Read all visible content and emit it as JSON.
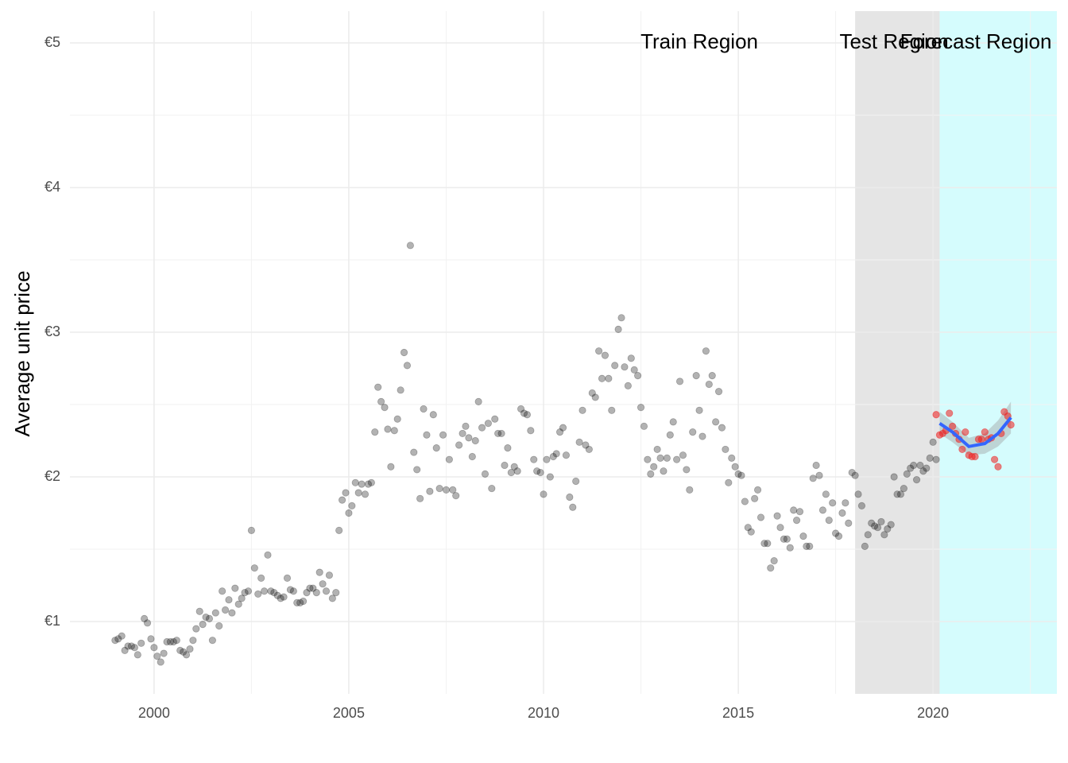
{
  "chart_data": {
    "type": "scatter",
    "y_label": "Average unit price",
    "xlim": [
      1997.84,
      2023.18
    ],
    "ylim": [
      0.5,
      5.22
    ],
    "xticks": [
      2000,
      2005,
      2010,
      2015,
      2020
    ],
    "x_minor_grid": [
      2002.5,
      2007.5,
      2012.5,
      2017.5,
      2022.5
    ],
    "yticks": [
      {
        "value": 1,
        "label": "€1"
      },
      {
        "value": 2,
        "label": "€2"
      },
      {
        "value": 3,
        "label": "€3"
      },
      {
        "value": 4,
        "label": "€4"
      },
      {
        "value": 5,
        "label": "€5"
      }
    ],
    "y_minor_grid": [
      1.5,
      2.5,
      3.5,
      4.5
    ],
    "grid": true,
    "regions": [
      {
        "start": 2018,
        "end": 2020.17,
        "color": "#e5e5e5"
      },
      {
        "start": 2020.17,
        "end": 2023.18,
        "color": "#d5fcfd"
      }
    ],
    "annotations": [
      {
        "text": "Train Region",
        "x": 2014,
        "y": 5
      },
      {
        "text": "Test Region",
        "x": 2019,
        "y": 5
      },
      {
        "text": "Forecast Region",
        "x": 2021.1,
        "y": 5
      }
    ],
    "series": [
      {
        "color": "#000000",
        "opacity": 0.3,
        "x": [
          1999,
          1999.08,
          1999.17,
          1999.25,
          1999.33,
          1999.42,
          1999.5,
          1999.58,
          1999.67,
          1999.75,
          1999.83,
          1999.92,
          2000,
          2000.08,
          2000.17,
          2000.25,
          2000.33,
          2000.42,
          2000.5,
          2000.58,
          2000.67,
          2000.75,
          2000.83,
          2000.92,
          2001,
          2001.08,
          2001.17,
          2001.25,
          2001.33,
          2001.42,
          2001.5,
          2001.58,
          2001.67,
          2001.75,
          2001.83,
          2001.92,
          2002,
          2002.08,
          2002.17,
          2002.25,
          2002.33,
          2002.42,
          2002.5,
          2002.58,
          2002.67,
          2002.75,
          2002.83,
          2002.92,
          2003,
          2003.08,
          2003.17,
          2003.25,
          2003.33,
          2003.42,
          2003.5,
          2003.58,
          2003.67,
          2003.75,
          2003.83,
          2003.92,
          2004,
          2004.08,
          2004.17,
          2004.25,
          2004.33,
          2004.42,
          2004.5,
          2004.58,
          2004.67,
          2004.75,
          2004.83,
          2004.92,
          2005,
          2005.08,
          2005.17,
          2005.25,
          2005.33,
          2005.42,
          2005.5,
          2005.58,
          2005.67,
          2005.75,
          2005.83,
          2005.92,
          2006,
          2006.08,
          2006.17,
          2006.25,
          2006.33,
          2006.42,
          2006.5,
          2006.58,
          2006.67,
          2006.75,
          2006.83,
          2006.92,
          2007,
          2007.08,
          2007.17,
          2007.25,
          2007.33,
          2007.42,
          2007.5,
          2007.58,
          2007.67,
          2007.75,
          2007.83,
          2007.92,
          2008,
          2008.08,
          2008.17,
          2008.25,
          2008.33,
          2008.42,
          2008.5,
          2008.58,
          2008.67,
          2008.75,
          2008.83,
          2008.92,
          2009,
          2009.08,
          2009.17,
          2009.25,
          2009.33,
          2009.42,
          2009.5,
          2009.58,
          2009.67,
          2009.75,
          2009.83,
          2009.92,
          2010,
          2010.08,
          2010.17,
          2010.25,
          2010.33,
          2010.42,
          2010.5,
          2010.58,
          2010.67,
          2010.75,
          2010.83,
          2010.92,
          2011,
          2011.08,
          2011.17,
          2011.25,
          2011.33,
          2011.42,
          2011.5,
          2011.58,
          2011.67,
          2011.75,
          2011.83,
          2011.92,
          2012,
          2012.08,
          2012.17,
          2012.25,
          2012.33,
          2012.42,
          2012.5,
          2012.58,
          2012.67,
          2012.75,
          2012.83,
          2012.92,
          2013,
          2013.08,
          2013.17,
          2013.25,
          2013.33,
          2013.42,
          2013.5,
          2013.58,
          2013.67,
          2013.75,
          2013.83,
          2013.92,
          2014,
          2014.08,
          2014.17,
          2014.25,
          2014.33,
          2014.42,
          2014.5,
          2014.58,
          2014.67,
          2014.75,
          2014.83,
          2014.92,
          2015,
          2015.08,
          2015.17,
          2015.25,
          2015.33,
          2015.42,
          2015.5,
          2015.58,
          2015.67,
          2015.75,
          2015.83,
          2015.92,
          2016,
          2016.08,
          2016.17,
          2016.25,
          2016.33,
          2016.42,
          2016.5,
          2016.58,
          2016.67,
          2016.75,
          2016.83,
          2016.92,
          2017,
          2017.08,
          2017.17,
          2017.25,
          2017.33,
          2017.42,
          2017.5,
          2017.58,
          2017.67,
          2017.75,
          2017.83,
          2017.92,
          2018,
          2018.08,
          2018.17,
          2018.25,
          2018.33,
          2018.42,
          2018.5,
          2018.58,
          2018.67,
          2018.75,
          2018.83,
          2018.92,
          2019,
          2019.08,
          2019.17,
          2019.25,
          2019.33,
          2019.42,
          2019.5,
          2019.58,
          2019.67,
          2019.75,
          2019.83,
          2019.92,
          2020,
          2020.08
        ],
        "values": [
          0.87,
          0.88,
          0.9,
          0.8,
          0.83,
          0.83,
          0.82,
          0.77,
          0.85,
          1.02,
          0.99,
          0.88,
          0.82,
          0.76,
          0.72,
          0.78,
          0.86,
          0.86,
          0.86,
          0.87,
          0.8,
          0.79,
          0.77,
          0.81,
          0.87,
          0.95,
          1.07,
          0.98,
          1.03,
          1.02,
          0.87,
          1.06,
          0.97,
          1.21,
          1.08,
          1.15,
          1.06,
          1.23,
          1.12,
          1.16,
          1.2,
          1.21,
          1.63,
          1.37,
          1.19,
          1.3,
          1.21,
          1.46,
          1.21,
          1.2,
          1.18,
          1.16,
          1.17,
          1.3,
          1.22,
          1.21,
          1.13,
          1.13,
          1.14,
          1.2,
          1.23,
          1.23,
          1.2,
          1.34,
          1.26,
          1.21,
          1.32,
          1.16,
          1.2,
          1.63,
          1.84,
          1.89,
          1.75,
          1.8,
          1.96,
          1.89,
          1.95,
          1.88,
          1.95,
          1.96,
          2.31,
          2.62,
          2.52,
          2.48,
          2.33,
          2.07,
          2.32,
          2.4,
          2.6,
          2.86,
          2.77,
          3.6,
          2.17,
          2.05,
          1.85,
          2.47,
          2.29,
          1.9,
          2.43,
          2.2,
          1.92,
          2.29,
          1.91,
          2.12,
          1.91,
          1.87,
          2.22,
          2.3,
          2.35,
          2.27,
          2.14,
          2.25,
          2.52,
          2.34,
          2.02,
          2.37,
          1.92,
          2.4,
          2.3,
          2.3,
          2.08,
          2.2,
          2.03,
          2.07,
          2.04,
          2.47,
          2.44,
          2.43,
          2.32,
          2.12,
          2.04,
          2.03,
          1.88,
          2.12,
          2.0,
          2.14,
          2.16,
          2.31,
          2.34,
          2.15,
          1.86,
          1.79,
          1.97,
          2.24,
          2.46,
          2.22,
          2.19,
          2.58,
          2.55,
          2.87,
          2.68,
          2.84,
          2.68,
          2.46,
          2.77,
          3.02,
          3.1,
          2.76,
          2.63,
          2.82,
          2.74,
          2.7,
          2.48,
          2.35,
          2.12,
          2.02,
          2.07,
          2.19,
          2.13,
          2.04,
          2.13,
          2.29,
          2.38,
          2.12,
          2.66,
          2.15,
          2.05,
          1.91,
          2.31,
          2.7,
          2.46,
          2.28,
          2.87,
          2.64,
          2.7,
          2.38,
          2.59,
          2.34,
          2.19,
          1.96,
          2.13,
          2.07,
          2.02,
          2.01,
          1.83,
          1.65,
          1.62,
          1.85,
          1.91,
          1.72,
          1.54,
          1.54,
          1.37,
          1.42,
          1.73,
          1.65,
          1.57,
          1.57,
          1.51,
          1.77,
          1.7,
          1.76,
          1.59,
          1.52,
          1.52,
          1.99,
          2.08,
          2.01,
          1.77,
          1.88,
          1.7,
          1.82,
          1.61,
          1.59,
          1.75,
          1.82,
          1.68,
          2.03,
          2.01,
          1.88,
          1.8,
          1.52,
          1.6,
          1.68,
          1.66,
          1.65,
          1.69,
          1.6,
          1.64,
          1.67,
          2.0,
          1.88,
          1.88,
          1.92,
          2.02,
          2.06,
          2.08,
          1.98,
          2.08,
          2.04,
          2.06,
          2.13,
          2.24,
          2.12
        ]
      },
      {
        "color": "#ee1c1c",
        "opacity": 0.55,
        "x": [
          2020.08,
          2020.17,
          2020.25,
          2020.33,
          2020.42,
          2020.5,
          2020.58,
          2020.67,
          2020.75,
          2020.83,
          2020.92,
          2021,
          2021.08,
          2021.17,
          2021.25,
          2021.33,
          2021.42,
          2021.5,
          2021.58,
          2021.67,
          2021.75,
          2021.83,
          2021.92,
          2022
        ],
        "values": [
          2.43,
          2.29,
          2.3,
          2.32,
          2.44,
          2.35,
          2.3,
          2.26,
          2.19,
          2.31,
          2.15,
          2.14,
          2.14,
          2.26,
          2.26,
          2.31,
          2.26,
          2.27,
          2.12,
          2.07,
          2.3,
          2.45,
          2.42,
          2.36
        ]
      }
    ],
    "forecast": {
      "color": "#3366ff",
      "band_color": "#999999",
      "x": [
        2020.17,
        2020.5,
        2020.92,
        2021.33,
        2021.67,
        2022
      ],
      "values": [
        2.37,
        2.31,
        2.21,
        2.23,
        2.3,
        2.41
      ],
      "lower": [
        2.3,
        2.24,
        2.15,
        2.16,
        2.21,
        2.3
      ],
      "upper": [
        2.45,
        2.38,
        2.27,
        2.3,
        2.39,
        2.52
      ]
    }
  }
}
